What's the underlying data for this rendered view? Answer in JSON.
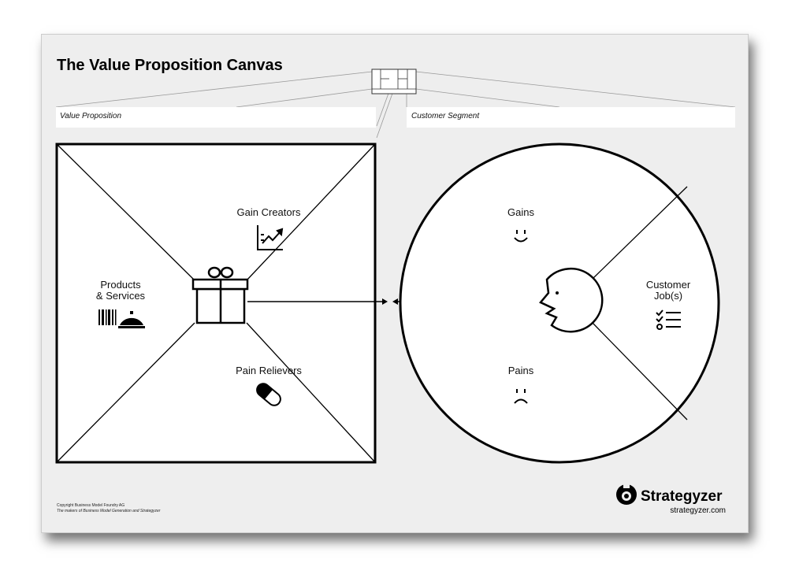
{
  "title": "The Value Proposition Canvas",
  "fields": {
    "value_proposition": "Value Proposition",
    "customer_segment": "Customer Segment"
  },
  "value_map": {
    "gain_creators": "Gain Creators",
    "products_services": [
      "Products",
      "& Services"
    ],
    "pain_relievers": "Pain Relievers"
  },
  "customer_profile": {
    "gains": "Gains",
    "customer_jobs": [
      "Customer",
      "Job(s)"
    ],
    "pains": "Pains"
  },
  "footer": {
    "copyright": "Copyright Business Model Foundry AG",
    "tagline": "The makers of Business Model Generation and Strategyzer",
    "brand": "Strategyzer",
    "url": "strategyzer.com"
  },
  "icons": [
    "gift-icon",
    "chart-icon",
    "barcode-icon",
    "service-bell-icon",
    "pill-icon",
    "smile-icon",
    "frown-icon",
    "checklist-icon",
    "face-icon",
    "strategyzer-logo"
  ]
}
